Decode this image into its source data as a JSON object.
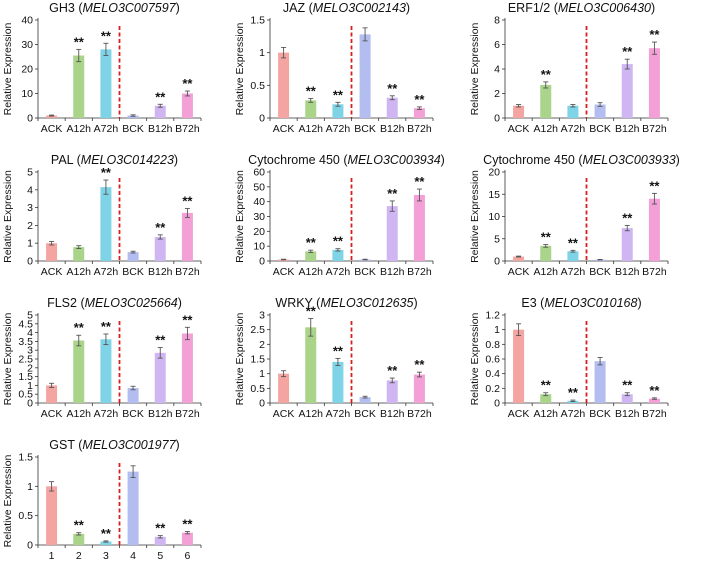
{
  "colors": {
    "bars": [
      "#f4a5a2",
      "#a9d48a",
      "#7fd3e6",
      "#b3bdf0",
      "#cfb6f2",
      "#f3a0d6"
    ],
    "error": "#555555",
    "divider": "#d81e1e",
    "axis": "#333333"
  },
  "chart_data": [
    {
      "type": "bar",
      "title_gene": "GH3",
      "title_id": "MELO3C007597",
      "ylabel": "Relative Expression",
      "categories": [
        "ACK",
        "A12h",
        "A72h",
        "BCK",
        "B12h",
        "B72h"
      ],
      "values": [
        1.0,
        25.5,
        28.0,
        1.0,
        5.0,
        10.0
      ],
      "errors": [
        0.2,
        2.5,
        2.5,
        0.3,
        0.6,
        1.0
      ],
      "marks": [
        "",
        "**",
        "**",
        "",
        "**",
        "**"
      ],
      "ylim": [
        0,
        40
      ],
      "yticks": [
        0,
        10,
        20,
        30,
        40
      ]
    },
    {
      "type": "bar",
      "title_gene": "JAZ",
      "title_id": "MELO3C002143",
      "ylabel": "Relative Expression",
      "categories": [
        "ACK",
        "A12h",
        "A72h",
        "BCK",
        "B12h",
        "B72h"
      ],
      "values": [
        1.0,
        0.27,
        0.21,
        1.28,
        0.31,
        0.15
      ],
      "errors": [
        0.08,
        0.03,
        0.03,
        0.1,
        0.03,
        0.02
      ],
      "marks": [
        "",
        "**",
        "**",
        "",
        "**",
        "**"
      ],
      "ylim": [
        0,
        1.5
      ],
      "yticks": [
        0,
        0.5,
        1,
        1.5
      ]
    },
    {
      "type": "bar",
      "title_gene": "ERF1/2",
      "title_id": "MELO3C006430",
      "ylabel": "Relative Expression",
      "categories": [
        "ACK",
        "A12h",
        "A72h",
        "BCK",
        "B12h",
        "B72h"
      ],
      "values": [
        1.0,
        2.7,
        1.0,
        1.1,
        4.4,
        5.7
      ],
      "errors": [
        0.1,
        0.25,
        0.1,
        0.15,
        0.4,
        0.5
      ],
      "marks": [
        "",
        "**",
        "",
        "",
        "**",
        "**"
      ],
      "ylim": [
        0,
        8
      ],
      "yticks": [
        0,
        2,
        4,
        6,
        8
      ]
    },
    {
      "type": "bar",
      "title_gene": "PAL",
      "title_id": "MELO3C014223",
      "ylabel": "Relative Expression",
      "categories": [
        "ACK",
        "A12h",
        "A72h",
        "BCK",
        "B12h",
        "B72h"
      ],
      "values": [
        1.0,
        0.78,
        4.15,
        0.5,
        1.35,
        2.7
      ],
      "errors": [
        0.1,
        0.08,
        0.4,
        0.05,
        0.12,
        0.25
      ],
      "marks": [
        "",
        "",
        "**",
        "",
        "**",
        "**"
      ],
      "ylim": [
        0,
        5
      ],
      "yticks": [
        0,
        1,
        2,
        3,
        4,
        5
      ]
    },
    {
      "type": "bar",
      "title_gene": "Cytochrome 450",
      "title_id": "MELO3C003934",
      "ylabel": "Relative Expression",
      "categories": [
        "ACK",
        "A12h",
        "A72h",
        "BCK",
        "B12h",
        "B72h"
      ],
      "values": [
        1.0,
        6.5,
        7.5,
        1.0,
        37.0,
        44.5
      ],
      "errors": [
        0.2,
        0.8,
        0.8,
        0.2,
        3.5,
        4.0
      ],
      "marks": [
        "",
        "**",
        "**",
        "",
        "**",
        "**"
      ],
      "ylim": [
        0,
        60
      ],
      "yticks": [
        0,
        10,
        20,
        30,
        40,
        50,
        60
      ]
    },
    {
      "type": "bar",
      "title_gene": "Cytochrome 450",
      "title_id": "MELO3C003933",
      "ylabel": "Relative Expression",
      "categories": [
        "ACK",
        "A12h",
        "A72h",
        "BCK",
        "B12h",
        "B72h"
      ],
      "values": [
        1.0,
        3.4,
        2.2,
        0.3,
        7.4,
        14.0
      ],
      "errors": [
        0.1,
        0.3,
        0.2,
        0.05,
        0.6,
        1.2
      ],
      "marks": [
        "",
        "**",
        "**",
        "",
        "**",
        "**"
      ],
      "ylim": [
        0,
        20
      ],
      "yticks": [
        0,
        5,
        10,
        15,
        20
      ]
    },
    {
      "type": "bar",
      "title_gene": "FLS2",
      "title_id": "MELO3C025664",
      "ylabel": "Relative Expression",
      "categories": [
        "ACK",
        "A12h",
        "A72h",
        "BCK",
        "B12h",
        "B72h"
      ],
      "values": [
        1.0,
        3.55,
        3.62,
        0.85,
        2.85,
        3.95
      ],
      "errors": [
        0.12,
        0.3,
        0.3,
        0.1,
        0.3,
        0.35
      ],
      "marks": [
        "",
        "**",
        "**",
        "",
        "**",
        "**"
      ],
      "ylim": [
        0,
        5
      ],
      "yticks": [
        0,
        0.5,
        1,
        1.5,
        2,
        2.5,
        3,
        3.5,
        4,
        4.5,
        5
      ]
    },
    {
      "type": "bar",
      "title_gene": "WRKY",
      "title_id": "MELO3C012635",
      "ylabel": "Relative Expression",
      "categories": [
        "ACK",
        "A12h",
        "A72h",
        "BCK",
        "B12h",
        "B72h"
      ],
      "values": [
        1.0,
        2.58,
        1.4,
        0.2,
        0.77,
        0.97
      ],
      "errors": [
        0.1,
        0.3,
        0.12,
        0.03,
        0.08,
        0.08
      ],
      "marks": [
        "",
        "**",
        "**",
        "",
        "**",
        "**"
      ],
      "ylim": [
        0,
        3
      ],
      "yticks": [
        0,
        0.5,
        1,
        1.5,
        2,
        2.5,
        3
      ]
    },
    {
      "type": "bar",
      "title_gene": "E3",
      "title_id": "MELO3C010168",
      "ylabel": "Relative Expression",
      "categories": [
        "ACK",
        "A12h",
        "A72h",
        "BCK",
        "B12h",
        "B72h"
      ],
      "values": [
        1.0,
        0.12,
        0.03,
        0.57,
        0.12,
        0.06
      ],
      "errors": [
        0.08,
        0.02,
        0.01,
        0.05,
        0.02,
        0.01
      ],
      "marks": [
        "",
        "**",
        "**",
        "",
        "**",
        "**"
      ],
      "ylim": [
        0,
        1.2
      ],
      "yticks": [
        0,
        0.2,
        0.4,
        0.6,
        0.8,
        1,
        1.2
      ]
    },
    {
      "type": "bar",
      "title_gene": "GST",
      "title_id": "MELO3C001977",
      "ylabel": "Relative Expression",
      "categories": [
        "1",
        "2",
        "3",
        "4",
        "5",
        "6"
      ],
      "values": [
        1.0,
        0.19,
        0.06,
        1.25,
        0.14,
        0.21
      ],
      "errors": [
        0.08,
        0.02,
        0.01,
        0.1,
        0.02,
        0.02
      ],
      "marks": [
        "",
        "**",
        "**",
        "",
        "**",
        "**"
      ],
      "ylim": [
        0,
        1.5
      ],
      "yticks": [
        0,
        0.5,
        1,
        1.5
      ]
    }
  ]
}
